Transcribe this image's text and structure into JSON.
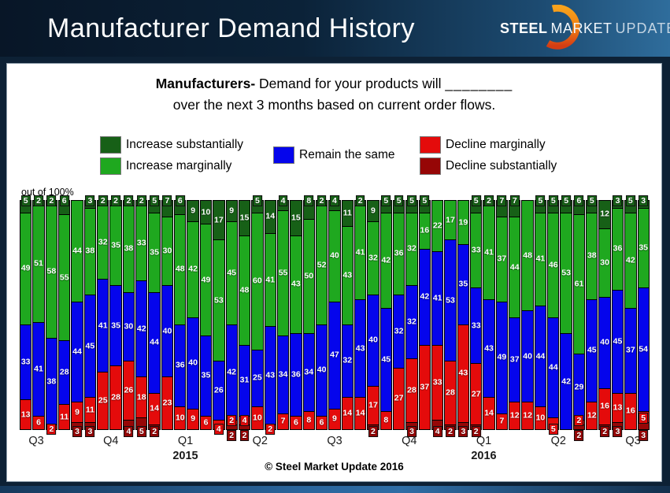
{
  "header": {
    "title": "Manufacturer Demand History",
    "logo": {
      "steel": "STEEL",
      "market": "MARKET",
      "update": "UPDATE"
    }
  },
  "subtitle": {
    "bold": "Manufacturers-",
    "line1_rest": " Demand for your products will ",
    "blank": "________",
    "line2": "over the next 3 months based on current order flows."
  },
  "legend": [
    {
      "label": "Increase substantially",
      "color": "#176017"
    },
    {
      "label": "Increase marginally",
      "color": "#1fa81f"
    },
    {
      "label": "Remain the same",
      "color": "#0505ec"
    },
    {
      "label": "Decline marginally",
      "color": "#e40b0b"
    },
    {
      "label": "Decline substantially",
      "color": "#960606"
    }
  ],
  "axis_note": "out of 100%",
  "footer": "© Steel Market Update 2016",
  "chart_data": {
    "type": "bar",
    "stacked": true,
    "ylim": [
      0,
      100
    ],
    "grid": false,
    "legend_position": "top",
    "title": "Manufacturer Demand History",
    "x_quarters": [
      {
        "label": "Q3",
        "year": ""
      },
      {
        "label": "Q4",
        "year": ""
      },
      {
        "label": "Q1",
        "year": "2015"
      },
      {
        "label": "Q2",
        "year": ""
      },
      {
        "label": "Q3",
        "year": ""
      },
      {
        "label": "Q4",
        "year": ""
      },
      {
        "label": "Q1",
        "year": "2016"
      },
      {
        "label": "Q2",
        "year": ""
      },
      {
        "label": "Q3",
        "year": ""
      }
    ],
    "series": [
      {
        "name": "Increase substantially",
        "color": "#176017",
        "values": [
          5,
          2,
          2,
          6,
          0,
          3,
          2,
          2,
          2,
          2,
          5,
          7,
          6,
          9,
          10,
          17,
          9,
          15,
          5,
          14,
          4,
          15,
          8,
          2,
          4,
          11,
          2,
          9,
          5,
          5,
          5,
          5,
          0,
          0,
          0,
          5,
          2,
          7,
          7,
          0,
          5,
          5,
          5,
          6,
          5,
          12,
          3,
          5,
          3
        ]
      },
      {
        "name": "Increase marginally",
        "color": "#1fa81f",
        "values": [
          49,
          51,
          58,
          55,
          44,
          38,
          32,
          35,
          38,
          33,
          35,
          30,
          48,
          42,
          49,
          53,
          45,
          48,
          60,
          41,
          55,
          43,
          50,
          52,
          40,
          43,
          41,
          32,
          42,
          36,
          32,
          16,
          22,
          17,
          19,
          33,
          41,
          37,
          44,
          48,
          41,
          46,
          53,
          61,
          38,
          30,
          36,
          42,
          35
        ]
      },
      {
        "name": "Remain the same",
        "color": "#0505ec",
        "values": [
          33,
          41,
          38,
          28,
          44,
          45,
          41,
          35,
          30,
          42,
          44,
          40,
          36,
          40,
          35,
          26,
          42,
          31,
          25,
          43,
          34,
          36,
          34,
          40,
          47,
          32,
          43,
          40,
          45,
          32,
          32,
          42,
          41,
          53,
          35,
          33,
          43,
          49,
          37,
          40,
          44,
          44,
          42,
          29,
          45,
          40,
          45,
          37,
          54
        ]
      },
      {
        "name": "Decline marginally",
        "color": "#e40b0b",
        "values": [
          13,
          6,
          2,
          11,
          9,
          11,
          25,
          28,
          26,
          18,
          14,
          23,
          10,
          9,
          6,
          4,
          2,
          4,
          10,
          2,
          7,
          6,
          8,
          6,
          9,
          14,
          14,
          17,
          8,
          27,
          28,
          37,
          33,
          28,
          43,
          27,
          14,
          7,
          12,
          12,
          10,
          5,
          0,
          2,
          12,
          16,
          13,
          16,
          5
        ]
      },
      {
        "name": "Decline substantially",
        "color": "#960606",
        "values": [
          0,
          0,
          0,
          0,
          3,
          3,
          0,
          0,
          4,
          5,
          2,
          0,
          0,
          0,
          0,
          0,
          2,
          2,
          0,
          0,
          0,
          0,
          0,
          0,
          0,
          0,
          0,
          2,
          0,
          0,
          3,
          0,
          4,
          2,
          3,
          2,
          0,
          0,
          0,
          0,
          0,
          0,
          0,
          2,
          0,
          2,
          3,
          0,
          3
        ]
      }
    ]
  }
}
